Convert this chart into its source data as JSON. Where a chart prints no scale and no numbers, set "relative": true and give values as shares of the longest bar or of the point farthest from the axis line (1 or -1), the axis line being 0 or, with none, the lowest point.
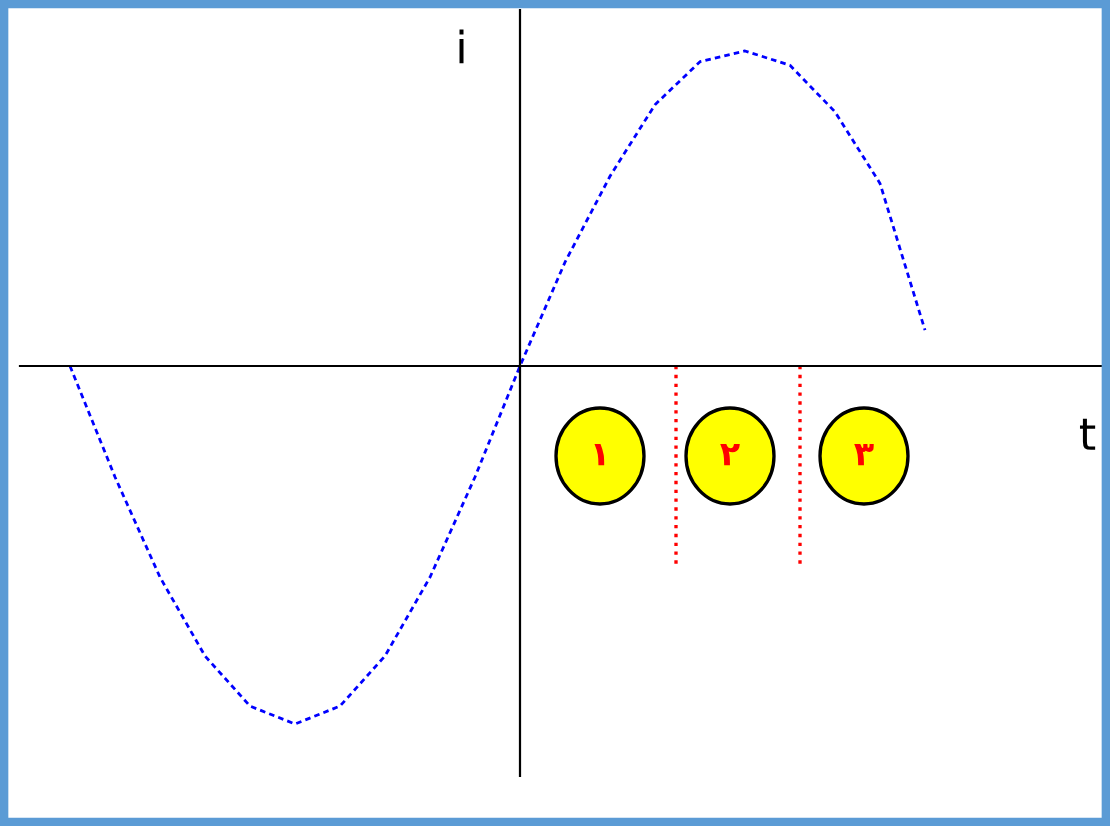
{
  "chart_data": {
    "type": "line",
    "relative": true,
    "xlabel": "t",
    "ylabel": "i",
    "categories": [
      null,
      null,
      null,
      null,
      null,
      null,
      null,
      null,
      null,
      null,
      null,
      null,
      null,
      null,
      null,
      null,
      null,
      null,
      null,
      null
    ],
    "series": [
      {
        "color": "#0000ff",
        "values": [
          0,
          -0.31,
          -0.59,
          -0.81,
          -0.95,
          -1,
          -0.95,
          -0.81,
          -0.59,
          -0.31,
          0,
          0.29,
          0.53,
          0.73,
          0.85,
          0.88,
          0.84,
          0.71,
          0.51,
          0.1
        ]
      }
    ],
    "line_style": "dashed",
    "marker": "none",
    "annotations": [
      "١",
      "٢",
      "٣"
    ]
  }
}
